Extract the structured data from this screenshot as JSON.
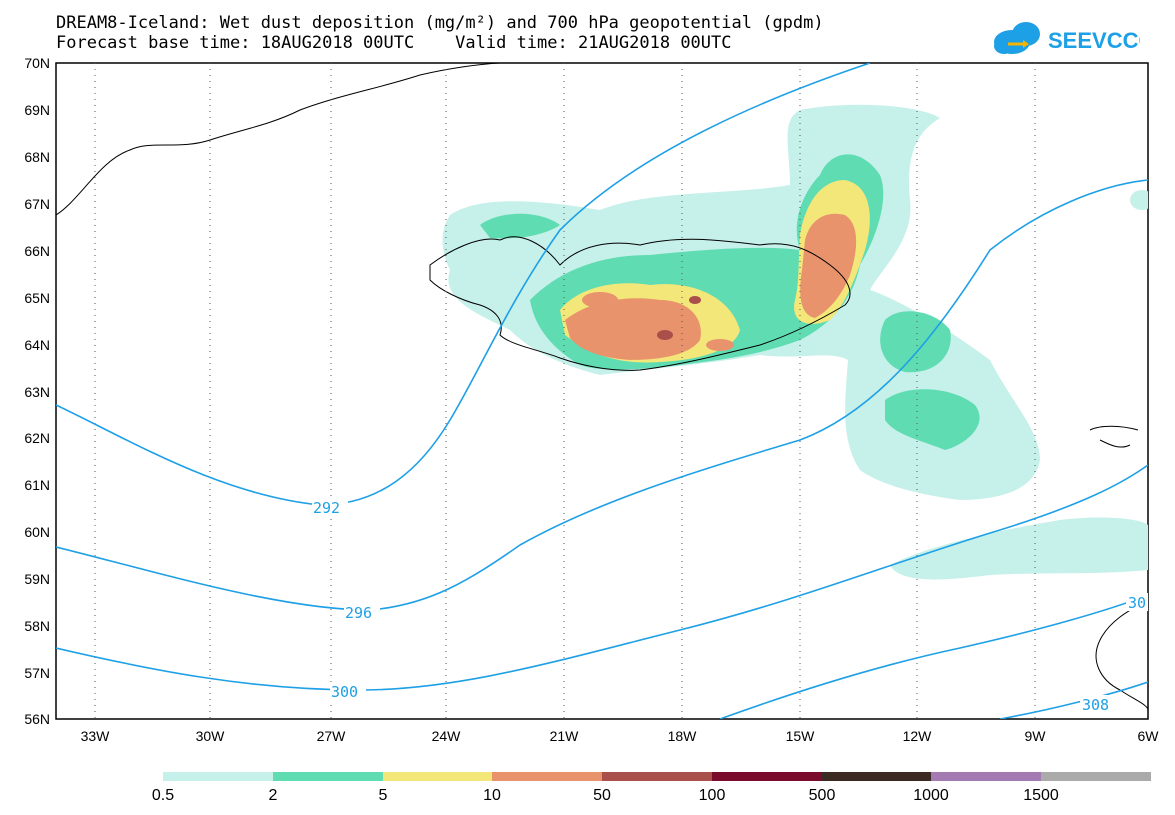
{
  "title_line1": "DREAM8-Iceland: Wet dust deposition (mg/m²) and 700 hPa geopotential (gpdm)",
  "title_line2": "Forecast base time: 18AUG2018 00UTC    Valid time: 21AUG2018 00UTC",
  "logo_text": "SEEVCCC",
  "lat_labels": [
    "70N",
    "69N",
    "68N",
    "67N",
    "66N",
    "65N",
    "64N",
    "63N",
    "62N",
    "61N",
    "60N",
    "59N",
    "58N",
    "57N",
    "56N"
  ],
  "lon_labels": [
    "33W",
    "30W",
    "27W",
    "24W",
    "21W",
    "18W",
    "15W",
    "12W",
    "9W",
    "6W"
  ],
  "contour_labels": [
    "292",
    "296",
    "300",
    "30",
    "308"
  ],
  "legend": {
    "ticks": [
      "0.5",
      "2",
      "5",
      "10",
      "50",
      "100",
      "500",
      "1000",
      "1500"
    ],
    "colors": [
      "#c6f0ea",
      "#5fdcb2",
      "#f3e77a",
      "#e8936c",
      "#a9504a",
      "#7a0b2c",
      "#3a2a22",
      "#a37ab2",
      "#aaaaaa"
    ]
  },
  "colors": {
    "contour": "#1ea0e6",
    "coast": "#000000",
    "grid": "#555555"
  }
}
